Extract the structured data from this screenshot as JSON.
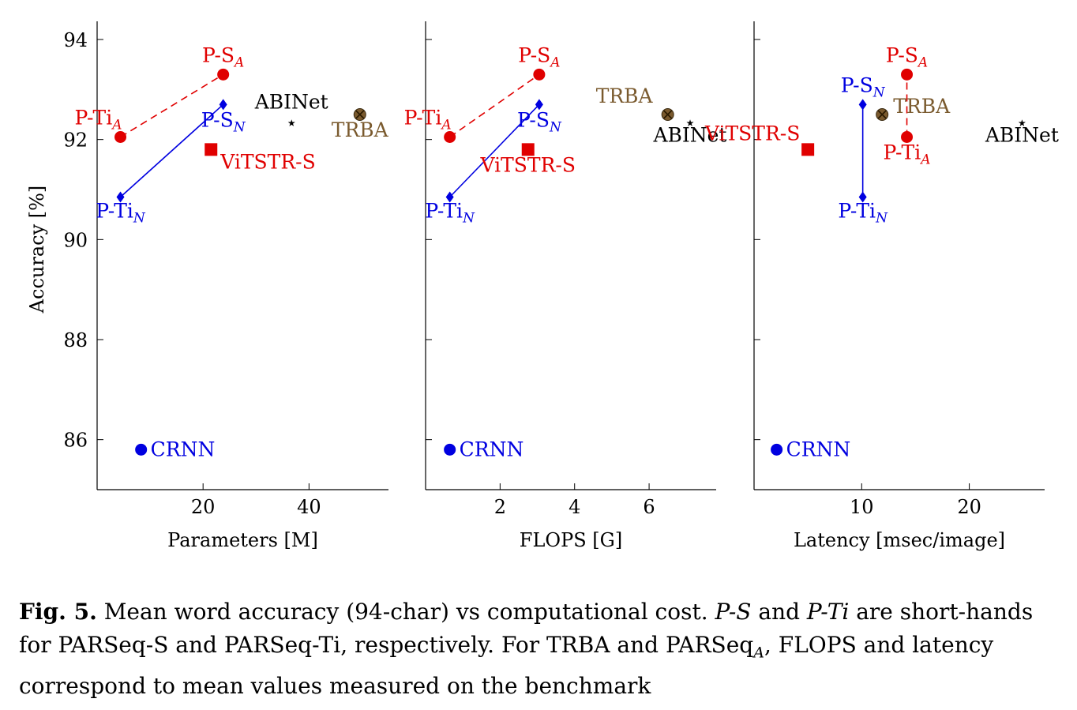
{
  "colors": {
    "parseq_n": "#0000e0",
    "parseq_a": "#e00000",
    "vitstr": "#e00000",
    "crnn": "#0000e0",
    "trba": "#7a5a2e",
    "abinet": "#000000",
    "axis": "#000000"
  },
  "chart_data": [
    {
      "type": "scatter",
      "xlabel": "Parameters [M]",
      "ylabel": "Accuracy [%]",
      "xlim": [
        0,
        55
      ],
      "ylim": [
        85,
        94.3
      ],
      "xticks": [
        20,
        40
      ],
      "yticks": [
        86,
        88,
        90,
        92,
        94
      ],
      "grid": false,
      "series": [
        {
          "name": "P-Ti_A → P-S_A",
          "style": "dashed",
          "color_key": "parseq_a",
          "marker": "circle",
          "points": [
            {
              "x": 4.4,
              "y": 92.05
            },
            {
              "x": 23.8,
              "y": 93.3
            }
          ]
        },
        {
          "name": "P-Ti_N → P-S_N",
          "style": "solid",
          "color_key": "parseq_n",
          "marker": "diamond",
          "points": [
            {
              "x": 4.4,
              "y": 90.85
            },
            {
              "x": 23.8,
              "y": 92.7
            }
          ]
        },
        {
          "name": "ViTSTR-S",
          "color_key": "vitstr",
          "marker": "square",
          "points": [
            {
              "x": 21.5,
              "y": 91.8
            }
          ]
        },
        {
          "name": "CRNN",
          "color_key": "crnn",
          "marker": "circle",
          "points": [
            {
              "x": 8.3,
              "y": 85.8
            }
          ]
        },
        {
          "name": "TRBA",
          "color_key": "trba",
          "marker": "otimes",
          "points": [
            {
              "x": 49.6,
              "y": 92.5
            }
          ]
        },
        {
          "name": "ABINet",
          "color_key": "abinet",
          "marker": "star",
          "points": [
            {
              "x": 36.7,
              "y": 92.4
            }
          ]
        }
      ]
    },
    {
      "type": "scatter",
      "xlabel": "FLOPS [G]",
      "ylabel": "",
      "xlim": [
        0,
        7.8
      ],
      "ylim": [
        85,
        94.3
      ],
      "xticks": [
        2,
        4,
        6
      ],
      "yticks": [
        86,
        88,
        90,
        92,
        94
      ],
      "grid": false,
      "series": [
        {
          "name": "P-Ti_A → P-S_A",
          "style": "dashed",
          "color_key": "parseq_a",
          "marker": "circle",
          "points": [
            {
              "x": 0.65,
              "y": 92.05
            },
            {
              "x": 3.05,
              "y": 93.3
            }
          ]
        },
        {
          "name": "P-Ti_N → P-S_N",
          "style": "solid",
          "color_key": "parseq_n",
          "marker": "diamond",
          "points": [
            {
              "x": 0.65,
              "y": 90.85
            },
            {
              "x": 3.05,
              "y": 92.7
            }
          ]
        },
        {
          "name": "ViTSTR-S",
          "color_key": "vitstr",
          "marker": "square",
          "points": [
            {
              "x": 2.75,
              "y": 91.8
            }
          ]
        },
        {
          "name": "CRNN",
          "color_key": "crnn",
          "marker": "circle",
          "points": [
            {
              "x": 0.65,
              "y": 85.8
            }
          ]
        },
        {
          "name": "TRBA",
          "color_key": "trba",
          "marker": "otimes",
          "points": [
            {
              "x": 6.5,
              "y": 92.5
            }
          ]
        },
        {
          "name": "ABINet",
          "color_key": "abinet",
          "marker": "star",
          "points": [
            {
              "x": 7.1,
              "y": 92.4
            }
          ]
        }
      ]
    },
    {
      "type": "scatter",
      "xlabel": "Latency [msec/image]",
      "ylabel": "",
      "xlim": [
        0,
        27
      ],
      "ylim": [
        85,
        94.3
      ],
      "xticks": [
        10,
        20
      ],
      "yticks": [
        86,
        88,
        90,
        92,
        94
      ],
      "grid": false,
      "series": [
        {
          "name": "P-Ti_A → P-S_A",
          "style": "dashed",
          "color_key": "parseq_a",
          "marker": "circle",
          "points": [
            {
              "x": 14.2,
              "y": 92.05
            },
            {
              "x": 14.2,
              "y": 93.3
            }
          ]
        },
        {
          "name": "P-Ti_N → P-S_N",
          "style": "solid",
          "color_key": "parseq_n",
          "marker": "diamond",
          "points": [
            {
              "x": 10.1,
              "y": 90.85
            },
            {
              "x": 10.1,
              "y": 92.7
            }
          ]
        },
        {
          "name": "ViTSTR-S",
          "color_key": "vitstr",
          "marker": "square",
          "points": [
            {
              "x": 5.0,
              "y": 91.8
            }
          ]
        },
        {
          "name": "CRNN",
          "color_key": "crnn",
          "marker": "circle",
          "points": [
            {
              "x": 2.1,
              "y": 85.8
            }
          ]
        },
        {
          "name": "TRBA",
          "color_key": "trba",
          "marker": "otimes",
          "points": [
            {
              "x": 11.9,
              "y": 92.5
            }
          ]
        },
        {
          "name": "ABINet",
          "color_key": "abinet",
          "marker": "star",
          "points": [
            {
              "x": 24.9,
              "y": 92.4
            }
          ]
        }
      ]
    }
  ],
  "caption": {
    "label": "Fig. 5.",
    "text_1": " Mean word accuracy (94-char) vs computational cost. ",
    "ps_italic": "P-S",
    "text_2": " and ",
    "pti_italic": "P-Ti",
    "text_3": " are short-hands for PARSeq-S and PARSeq-Ti, respectively. For TRBA and PARSeq",
    "sub_a": "A",
    "text_4": ", FLOPS and latency correspond to mean values measured on the benchmark"
  }
}
